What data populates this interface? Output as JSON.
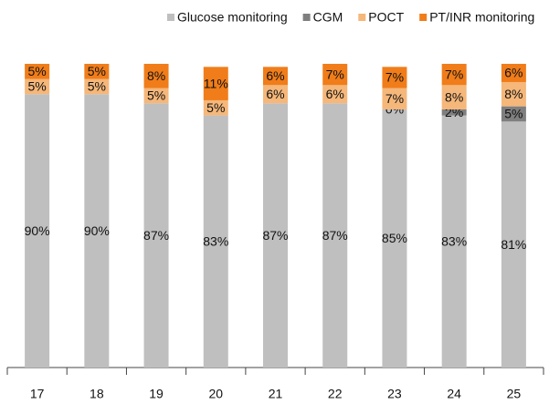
{
  "chart_data": {
    "type": "stacked_bar",
    "categories": [
      "17",
      "18",
      "19",
      "20",
      "21",
      "22",
      "23",
      "24",
      "25"
    ],
    "ylim": [
      0,
      100
    ],
    "series": [
      {
        "name": "Glucose monitoring",
        "color": "#bfbfbf",
        "values": [
          90,
          90,
          87,
          83,
          87,
          87,
          85,
          83,
          81
        ],
        "value_labels": [
          "90%",
          "90%",
          "87%",
          "83%",
          "87%",
          "87%",
          "85%",
          "83%",
          "81%"
        ]
      },
      {
        "name": "CGM",
        "color": "#7f7f7f",
        "values": [
          null,
          null,
          null,
          null,
          null,
          null,
          0,
          2,
          5
        ],
        "value_labels": [
          null,
          null,
          null,
          null,
          null,
          null,
          "0%",
          "2%",
          "5%"
        ]
      },
      {
        "name": "POCT",
        "color": "#f5b77a",
        "values": [
          5,
          5,
          5,
          5,
          6,
          6,
          7,
          8,
          8
        ],
        "value_labels": [
          "5%",
          "5%",
          "5%",
          "5%",
          "6%",
          "6%",
          "7%",
          "8%",
          "8%"
        ]
      },
      {
        "name": "PT/INR monitoring",
        "color": "#f07d1a",
        "values": [
          5,
          5,
          8,
          11,
          6,
          7,
          7,
          7,
          6
        ],
        "value_labels": [
          "5%",
          "5%",
          "8%",
          "11%",
          "6%",
          "7%",
          "7%",
          "7%",
          "6%"
        ]
      }
    ]
  }
}
